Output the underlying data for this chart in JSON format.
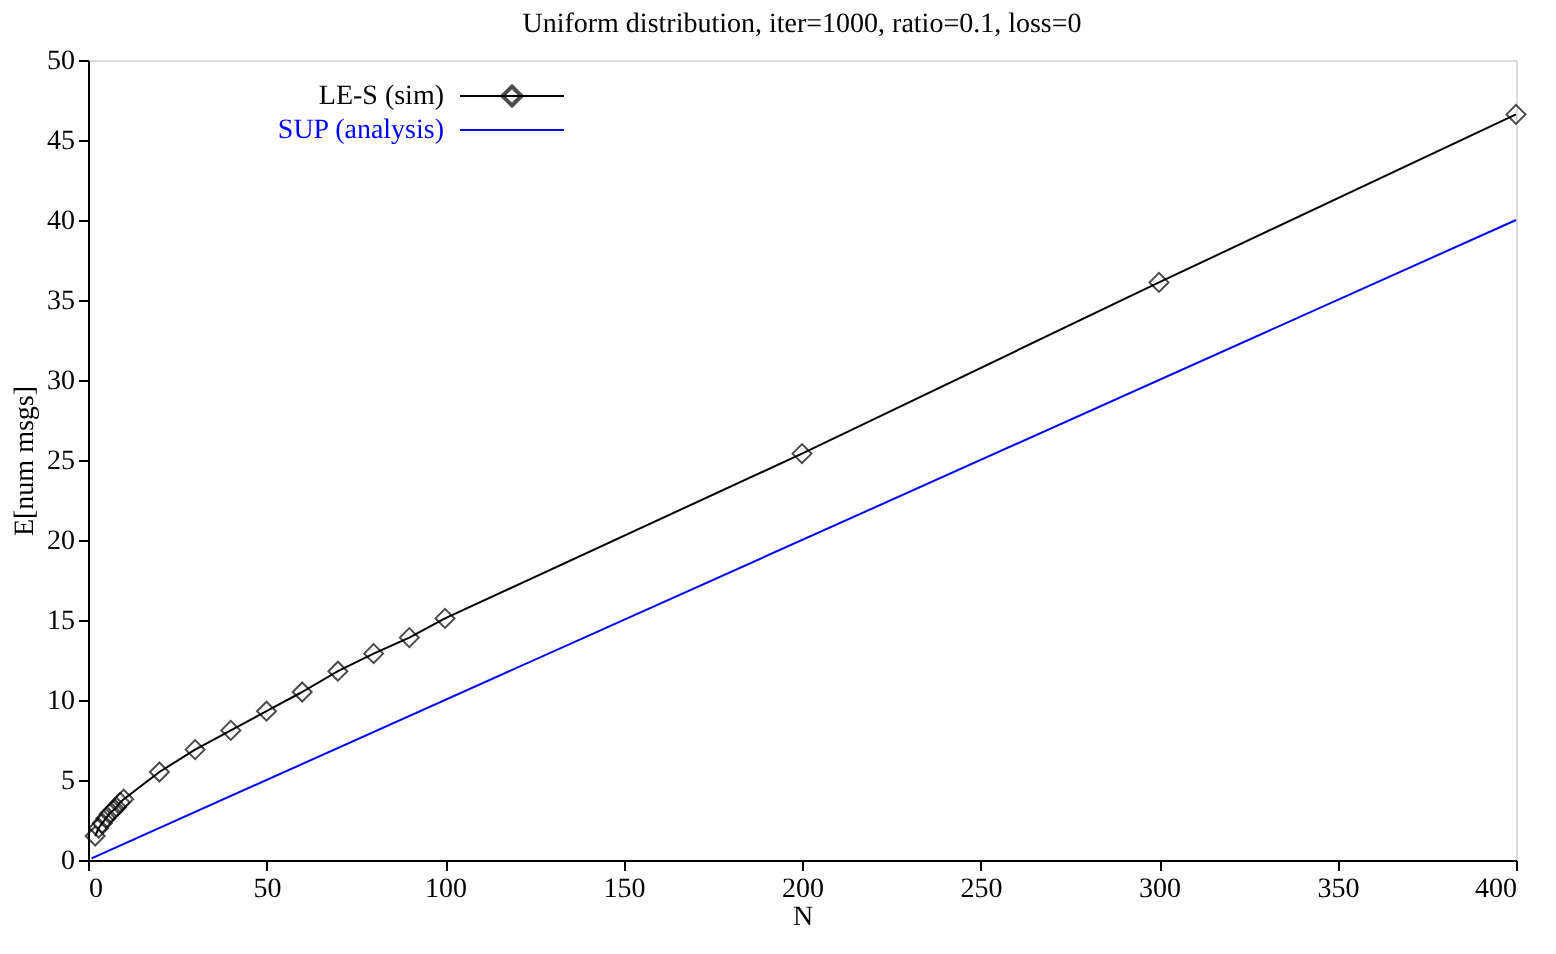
{
  "chart_data": {
    "type": "line",
    "title": "Uniform distribution, iter=1000, ratio=0.1, loss=0",
    "xlabel": "N",
    "ylabel": "E[num msgs]",
    "series": [
      {
        "name": "LE-S (sim)",
        "color": "#000000",
        "marker": "diamond",
        "x": [
          2,
          3,
          4,
          5,
          6,
          7,
          8,
          9,
          10,
          20,
          30,
          40,
          50,
          60,
          70,
          80,
          90,
          100,
          200,
          300,
          400
        ],
        "values": [
          1.5,
          2.0,
          2.3,
          2.6,
          2.9,
          3.1,
          3.3,
          3.6,
          3.8,
          5.5,
          6.9,
          8.1,
          9.3,
          10.5,
          11.8,
          12.9,
          13.9,
          15.1,
          25.4,
          36.1,
          46.6
        ]
      },
      {
        "name": "SUP (analysis)",
        "color": "#0000ff",
        "marker": "none",
        "x": [
          1,
          400
        ],
        "values": [
          0.1,
          40
        ]
      }
    ],
    "xlim": [
      0,
      400
    ],
    "xticks": [
      0,
      50,
      100,
      150,
      200,
      250,
      300,
      350,
      400
    ],
    "ylim": [
      0,
      50
    ],
    "yticks": [
      0,
      5,
      10,
      15,
      20,
      25,
      30,
      35,
      40,
      45,
      50
    ],
    "grid": false,
    "legend": "top left",
    "line_style": "solid"
  }
}
